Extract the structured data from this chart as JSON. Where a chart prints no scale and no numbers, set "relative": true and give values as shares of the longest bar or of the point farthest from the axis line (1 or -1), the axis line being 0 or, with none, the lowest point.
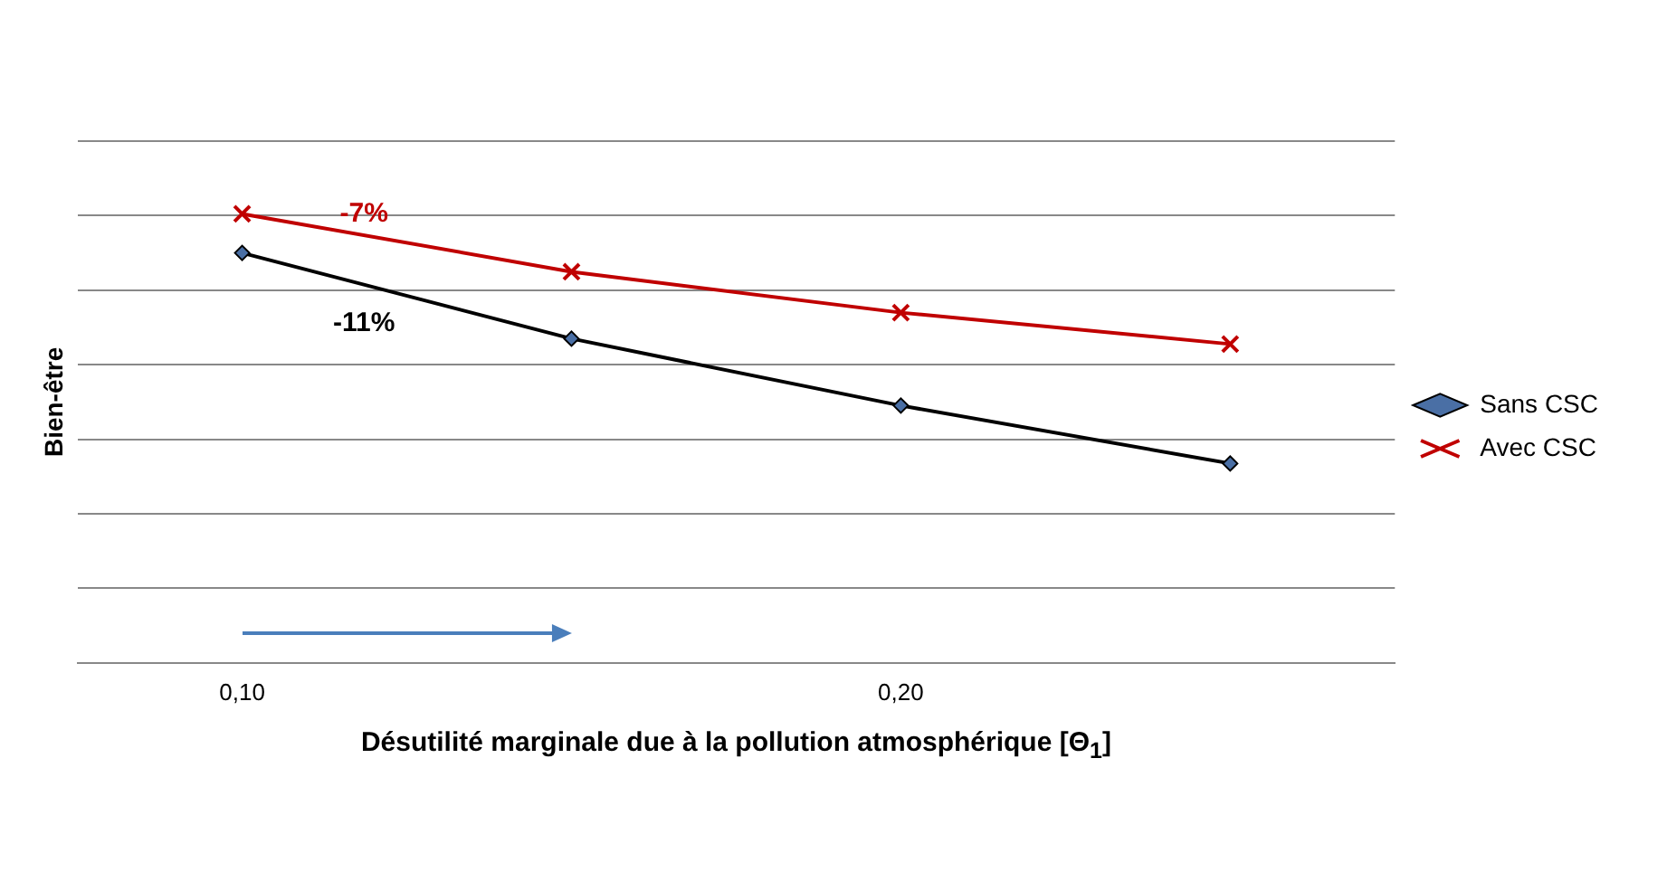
{
  "chart_data": {
    "type": "line",
    "relative": true,
    "xlabel": "Désutilité marginale due à la pollution atmosphérique [Θ$_{1}$]",
    "ylabel": "Bien-être",
    "categories": [
      "0,10",
      null,
      "0,20",
      null
    ],
    "series": [
      {
        "name": "Sans CSC",
        "color": "#000000",
        "marker": "diamond",
        "values": [
          0.913,
          0.722,
          0.573,
          0.444
        ]
      },
      {
        "name": "Avec CSC",
        "color": "#c00000",
        "marker": "cross",
        "values": [
          1,
          0.871,
          0.78,
          0.71
        ]
      }
    ],
    "annotations": [
      "-11%",
      "-7%"
    ],
    "grid": "y",
    "legend": "right",
    "line_style": "solid"
  }
}
